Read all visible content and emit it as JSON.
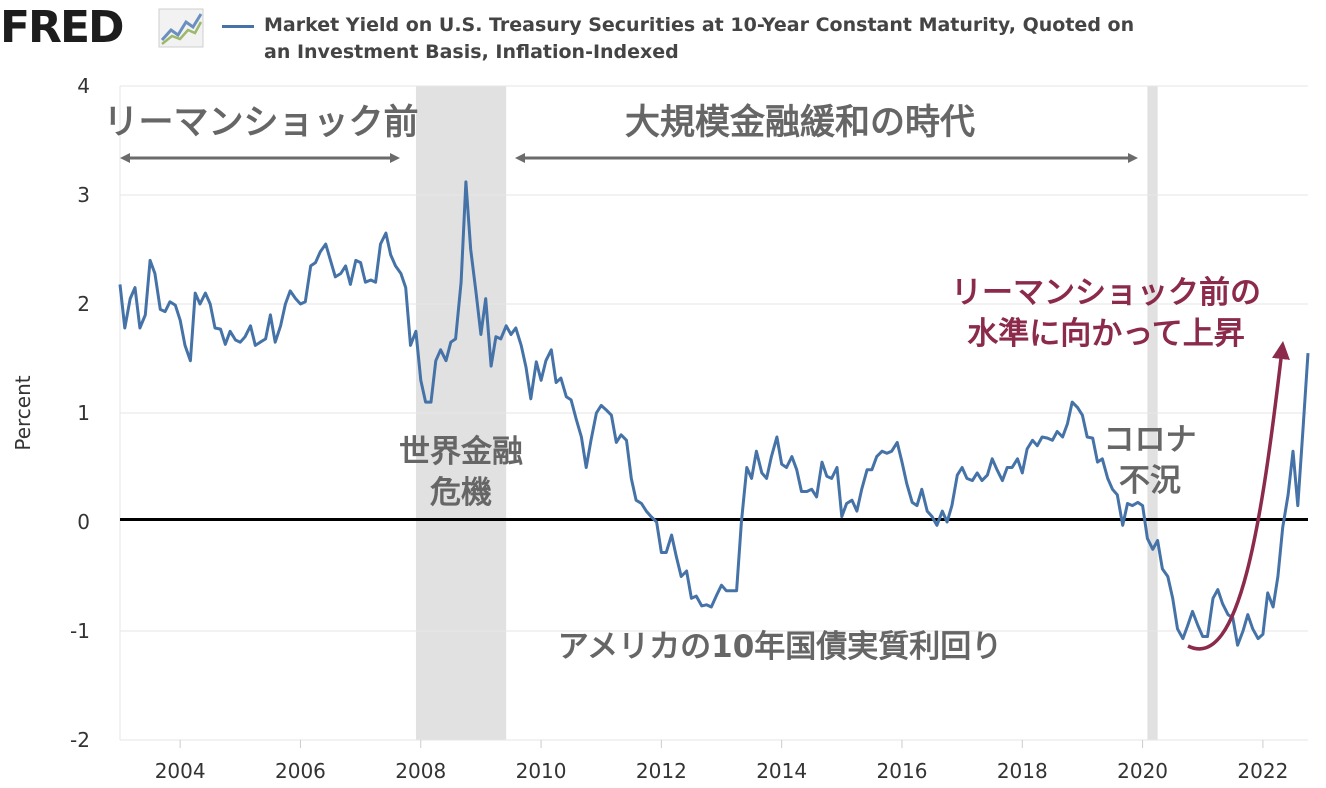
{
  "header": {
    "logo_text": "FRED",
    "legend_label": "Market Yield on U.S. Treasury Securities at 10-Year Constant Maturity, Quoted on an Investment Basis, Inflation-Indexed"
  },
  "colors": {
    "series": "#4572a7",
    "recession": "#e1e1e1",
    "arrow_gray": "#6b6b6b",
    "arrow_red": "#8b2a4a"
  },
  "icons": [
    "fred-graph-icon"
  ],
  "chart_data": {
    "type": "line",
    "title": "",
    "xlabel": "",
    "ylabel": "Percent",
    "xlim": [
      2003.0,
      2022.75
    ],
    "ylim": [
      -2,
      4
    ],
    "x_ticks": [
      "2004",
      "2006",
      "2008",
      "2010",
      "2012",
      "2014",
      "2016",
      "2018",
      "2020",
      "2022"
    ],
    "y_ticks": [
      "4",
      "3",
      "2",
      "1",
      "0",
      "-1",
      "-2"
    ],
    "grid": "horizontal",
    "zero_line": true,
    "recessions": [
      [
        2007.92,
        2009.42
      ],
      [
        2020.08,
        2020.25
      ]
    ],
    "series": [
      {
        "name": "Market Yield on U.S. Treasury Securities at 10-Year Constant Maturity, Quoted on an Investment Basis, Inflation-Indexed",
        "points": [
          [
            2003.0,
            2.18
          ],
          [
            2003.08,
            1.78
          ],
          [
            2003.17,
            2.05
          ],
          [
            2003.25,
            2.15
          ],
          [
            2003.33,
            1.78
          ],
          [
            2003.42,
            1.9
          ],
          [
            2003.5,
            2.4
          ],
          [
            2003.58,
            2.28
          ],
          [
            2003.67,
            1.95
          ],
          [
            2003.75,
            1.93
          ],
          [
            2003.83,
            2.02
          ],
          [
            2003.92,
            1.99
          ],
          [
            2004.0,
            1.85
          ],
          [
            2004.08,
            1.62
          ],
          [
            2004.17,
            1.48
          ],
          [
            2004.25,
            2.1
          ],
          [
            2004.33,
            2.0
          ],
          [
            2004.42,
            2.1
          ],
          [
            2004.5,
            2.0
          ],
          [
            2004.58,
            1.78
          ],
          [
            2004.67,
            1.77
          ],
          [
            2004.75,
            1.63
          ],
          [
            2004.83,
            1.75
          ],
          [
            2004.92,
            1.67
          ],
          [
            2005.0,
            1.65
          ],
          [
            2005.08,
            1.7
          ],
          [
            2005.17,
            1.8
          ],
          [
            2005.25,
            1.62
          ],
          [
            2005.33,
            1.65
          ],
          [
            2005.42,
            1.68
          ],
          [
            2005.5,
            1.9
          ],
          [
            2005.58,
            1.65
          ],
          [
            2005.67,
            1.8
          ],
          [
            2005.75,
            2.0
          ],
          [
            2005.83,
            2.12
          ],
          [
            2005.92,
            2.05
          ],
          [
            2006.0,
            2.0
          ],
          [
            2006.08,
            2.02
          ],
          [
            2006.17,
            2.35
          ],
          [
            2006.25,
            2.38
          ],
          [
            2006.33,
            2.48
          ],
          [
            2006.42,
            2.55
          ],
          [
            2006.5,
            2.4
          ],
          [
            2006.58,
            2.25
          ],
          [
            2006.67,
            2.28
          ],
          [
            2006.75,
            2.35
          ],
          [
            2006.83,
            2.18
          ],
          [
            2006.92,
            2.4
          ],
          [
            2007.0,
            2.38
          ],
          [
            2007.08,
            2.2
          ],
          [
            2007.17,
            2.22
          ],
          [
            2007.25,
            2.2
          ],
          [
            2007.33,
            2.55
          ],
          [
            2007.42,
            2.65
          ],
          [
            2007.5,
            2.45
          ],
          [
            2007.58,
            2.35
          ],
          [
            2007.67,
            2.28
          ],
          [
            2007.75,
            2.15
          ],
          [
            2007.83,
            1.62
          ],
          [
            2007.92,
            1.75
          ],
          [
            2008.0,
            1.3
          ],
          [
            2008.08,
            1.1
          ],
          [
            2008.17,
            1.1
          ],
          [
            2008.25,
            1.48
          ],
          [
            2008.33,
            1.58
          ],
          [
            2008.42,
            1.48
          ],
          [
            2008.5,
            1.65
          ],
          [
            2008.58,
            1.68
          ],
          [
            2008.67,
            2.2
          ],
          [
            2008.75,
            3.12
          ],
          [
            2008.83,
            2.5
          ],
          [
            2008.92,
            2.1
          ],
          [
            2009.0,
            1.72
          ],
          [
            2009.08,
            2.05
          ],
          [
            2009.17,
            1.43
          ],
          [
            2009.25,
            1.7
          ],
          [
            2009.33,
            1.68
          ],
          [
            2009.42,
            1.8
          ],
          [
            2009.5,
            1.72
          ],
          [
            2009.58,
            1.78
          ],
          [
            2009.67,
            1.62
          ],
          [
            2009.75,
            1.42
          ],
          [
            2009.83,
            1.13
          ],
          [
            2009.92,
            1.47
          ],
          [
            2010.0,
            1.3
          ],
          [
            2010.08,
            1.48
          ],
          [
            2010.17,
            1.58
          ],
          [
            2010.25,
            1.28
          ],
          [
            2010.33,
            1.32
          ],
          [
            2010.42,
            1.15
          ],
          [
            2010.5,
            1.12
          ],
          [
            2010.58,
            0.95
          ],
          [
            2010.67,
            0.78
          ],
          [
            2010.75,
            0.5
          ],
          [
            2010.83,
            0.75
          ],
          [
            2010.92,
            1.0
          ],
          [
            2011.0,
            1.07
          ],
          [
            2011.08,
            1.03
          ],
          [
            2011.17,
            0.98
          ],
          [
            2011.25,
            0.73
          ],
          [
            2011.33,
            0.8
          ],
          [
            2011.42,
            0.75
          ],
          [
            2011.5,
            0.4
          ],
          [
            2011.58,
            0.2
          ],
          [
            2011.67,
            0.17
          ],
          [
            2011.75,
            0.1
          ],
          [
            2011.83,
            0.05
          ],
          [
            2011.92,
            0.0
          ],
          [
            2012.0,
            -0.28
          ],
          [
            2012.08,
            -0.28
          ],
          [
            2012.17,
            -0.12
          ],
          [
            2012.25,
            -0.32
          ],
          [
            2012.33,
            -0.5
          ],
          [
            2012.42,
            -0.45
          ],
          [
            2012.5,
            -0.7
          ],
          [
            2012.58,
            -0.68
          ],
          [
            2012.67,
            -0.77
          ],
          [
            2012.75,
            -0.76
          ],
          [
            2012.83,
            -0.78
          ],
          [
            2012.92,
            -0.67
          ],
          [
            2013.0,
            -0.58
          ],
          [
            2013.08,
            -0.63
          ],
          [
            2013.17,
            -0.63
          ],
          [
            2013.25,
            -0.63
          ],
          [
            2013.33,
            0.0
          ],
          [
            2013.42,
            0.5
          ],
          [
            2013.5,
            0.4
          ],
          [
            2013.58,
            0.65
          ],
          [
            2013.67,
            0.45
          ],
          [
            2013.75,
            0.4
          ],
          [
            2013.83,
            0.6
          ],
          [
            2013.92,
            0.78
          ],
          [
            2014.0,
            0.53
          ],
          [
            2014.08,
            0.5
          ],
          [
            2014.17,
            0.6
          ],
          [
            2014.25,
            0.48
          ],
          [
            2014.33,
            0.28
          ],
          [
            2014.42,
            0.28
          ],
          [
            2014.5,
            0.3
          ],
          [
            2014.58,
            0.23
          ],
          [
            2014.67,
            0.55
          ],
          [
            2014.75,
            0.42
          ],
          [
            2014.83,
            0.4
          ],
          [
            2014.92,
            0.5
          ],
          [
            2015.0,
            0.05
          ],
          [
            2015.08,
            0.17
          ],
          [
            2015.17,
            0.2
          ],
          [
            2015.25,
            0.1
          ],
          [
            2015.33,
            0.3
          ],
          [
            2015.42,
            0.48
          ],
          [
            2015.5,
            0.48
          ],
          [
            2015.58,
            0.6
          ],
          [
            2015.67,
            0.65
          ],
          [
            2015.75,
            0.63
          ],
          [
            2015.83,
            0.65
          ],
          [
            2015.92,
            0.73
          ],
          [
            2016.0,
            0.55
          ],
          [
            2016.08,
            0.35
          ],
          [
            2016.17,
            0.18
          ],
          [
            2016.25,
            0.15
          ],
          [
            2016.33,
            0.3
          ],
          [
            2016.42,
            0.1
          ],
          [
            2016.5,
            0.05
          ],
          [
            2016.58,
            -0.03
          ],
          [
            2016.67,
            0.1
          ],
          [
            2016.75,
            0.0
          ],
          [
            2016.83,
            0.15
          ],
          [
            2016.92,
            0.43
          ],
          [
            2017.0,
            0.5
          ],
          [
            2017.08,
            0.4
          ],
          [
            2017.17,
            0.38
          ],
          [
            2017.25,
            0.45
          ],
          [
            2017.33,
            0.38
          ],
          [
            2017.42,
            0.43
          ],
          [
            2017.5,
            0.58
          ],
          [
            2017.58,
            0.48
          ],
          [
            2017.67,
            0.38
          ],
          [
            2017.75,
            0.5
          ],
          [
            2017.83,
            0.5
          ],
          [
            2017.92,
            0.58
          ],
          [
            2018.0,
            0.45
          ],
          [
            2018.08,
            0.67
          ],
          [
            2018.17,
            0.75
          ],
          [
            2018.25,
            0.7
          ],
          [
            2018.33,
            0.78
          ],
          [
            2018.42,
            0.77
          ],
          [
            2018.5,
            0.75
          ],
          [
            2018.58,
            0.83
          ],
          [
            2018.67,
            0.78
          ],
          [
            2018.75,
            0.9
          ],
          [
            2018.83,
            1.1
          ],
          [
            2018.92,
            1.05
          ],
          [
            2019.0,
            0.98
          ],
          [
            2019.08,
            0.78
          ],
          [
            2019.17,
            0.77
          ],
          [
            2019.25,
            0.55
          ],
          [
            2019.33,
            0.58
          ],
          [
            2019.42,
            0.4
          ],
          [
            2019.5,
            0.3
          ],
          [
            2019.58,
            0.25
          ],
          [
            2019.67,
            -0.03
          ],
          [
            2019.75,
            0.17
          ],
          [
            2019.83,
            0.15
          ],
          [
            2019.92,
            0.18
          ],
          [
            2020.0,
            0.15
          ],
          [
            2020.08,
            -0.15
          ],
          [
            2020.17,
            -0.25
          ],
          [
            2020.25,
            -0.17
          ],
          [
            2020.33,
            -0.43
          ],
          [
            2020.42,
            -0.5
          ],
          [
            2020.5,
            -0.7
          ],
          [
            2020.58,
            -0.98
          ],
          [
            2020.67,
            -1.07
          ],
          [
            2020.75,
            -0.95
          ],
          [
            2020.83,
            -0.82
          ],
          [
            2020.92,
            -0.95
          ],
          [
            2021.0,
            -1.05
          ],
          [
            2021.08,
            -1.05
          ],
          [
            2021.17,
            -0.7
          ],
          [
            2021.25,
            -0.62
          ],
          [
            2021.33,
            -0.75
          ],
          [
            2021.42,
            -0.85
          ],
          [
            2021.5,
            -0.88
          ],
          [
            2021.58,
            -1.13
          ],
          [
            2021.67,
            -1.0
          ],
          [
            2021.75,
            -0.85
          ],
          [
            2021.83,
            -0.98
          ],
          [
            2021.92,
            -1.07
          ],
          [
            2022.0,
            -1.03
          ],
          [
            2022.08,
            -0.65
          ],
          [
            2022.17,
            -0.78
          ],
          [
            2022.25,
            -0.5
          ],
          [
            2022.33,
            -0.05
          ],
          [
            2022.42,
            0.25
          ],
          [
            2022.5,
            0.65
          ],
          [
            2022.58,
            0.15
          ],
          [
            2022.67,
            0.88
          ],
          [
            2022.75,
            1.55
          ]
        ]
      }
    ],
    "annotations": [
      {
        "text": "リーマンショック前",
        "kind": "gray-large"
      },
      {
        "text": "大規模金融緩和の時代",
        "kind": "gray-large"
      },
      {
        "text": "世界金融",
        "kind": "gray"
      },
      {
        "text": "危機",
        "kind": "gray"
      },
      {
        "text": "コロナ",
        "kind": "gray"
      },
      {
        "text": "不況",
        "kind": "gray"
      },
      {
        "text": "アメリカの10年国債実質利回り",
        "kind": "gray"
      },
      {
        "text": "リーマンショック前の",
        "kind": "red"
      },
      {
        "text": "水準に向かって上昇",
        "kind": "red"
      }
    ]
  }
}
